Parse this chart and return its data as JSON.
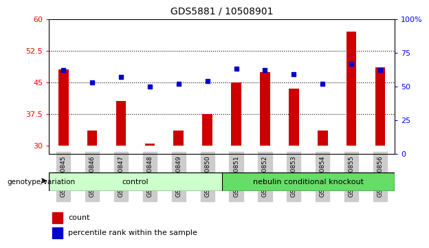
{
  "title": "GDS5881 / 10508901",
  "samples": [
    "GSM1720845",
    "GSM1720846",
    "GSM1720847",
    "GSM1720848",
    "GSM1720849",
    "GSM1720850",
    "GSM1720851",
    "GSM1720852",
    "GSM1720853",
    "GSM1720854",
    "GSM1720855",
    "GSM1720856"
  ],
  "count_values": [
    48.0,
    33.5,
    40.5,
    30.5,
    33.5,
    37.5,
    45.0,
    47.5,
    43.5,
    33.5,
    57.0,
    48.5
  ],
  "percentile_values": [
    62,
    53,
    57,
    50,
    52,
    54,
    63,
    62,
    59,
    52,
    67,
    62
  ],
  "ylim_left": [
    28,
    60
  ],
  "ylim_right": [
    0,
    100
  ],
  "yticks_left": [
    30,
    37.5,
    45,
    52.5,
    60
  ],
  "ytick_labels_left": [
    "30",
    "37.5",
    "45",
    "52.5",
    "60"
  ],
  "yticks_right": [
    0,
    25,
    50,
    75,
    100
  ],
  "ytick_labels_right": [
    "0",
    "25",
    "50",
    "75",
    "100%"
  ],
  "bar_color": "#cc0000",
  "dot_color": "#0000cc",
  "bar_width": 0.35,
  "groups": [
    {
      "label": "control",
      "indices": [
        0,
        1,
        2,
        3,
        4,
        5
      ],
      "color": "#ccffcc"
    },
    {
      "label": "nebulin conditional knockout",
      "indices": [
        6,
        7,
        8,
        9,
        10,
        11
      ],
      "color": "#66dd66"
    }
  ],
  "group_label": "genotype/variation",
  "legend_count_label": "count",
  "legend_pct_label": "percentile rank within the sample",
  "tick_bg_color": "#cccccc",
  "grid_lines": [
    37.5,
    45.0,
    52.5
  ],
  "plot_bg_color": "#ffffff",
  "bar_bottom": 30
}
